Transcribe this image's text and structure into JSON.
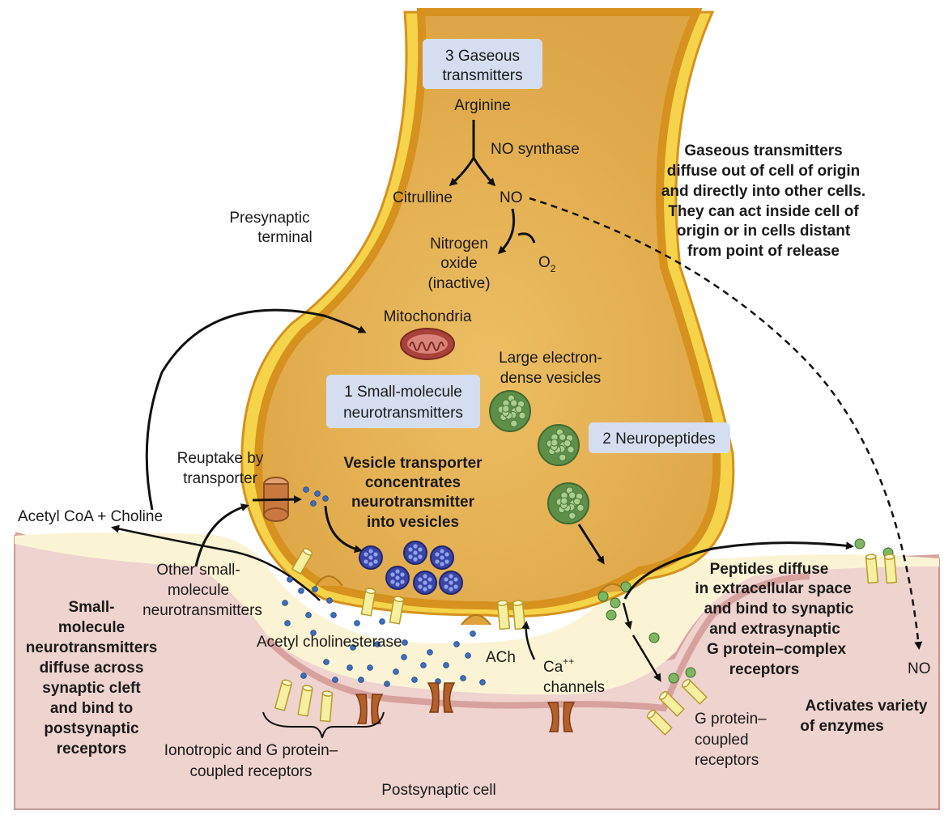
{
  "labels": {
    "gaseous_box": [
      "3 Gaseous",
      "transmitters"
    ],
    "arginine": "Arginine",
    "no_synthase": "NO synthase",
    "citrulline": "Citrulline",
    "no_top": "NO",
    "nitrogen_oxide": [
      "Nitrogen",
      "oxide",
      "(inactive)"
    ],
    "o2": "O",
    "o2_sub": "2",
    "presynaptic": [
      "Presynaptic",
      "terminal"
    ],
    "gaseous_note": [
      "Gaseous transmitters",
      "diffuse out of cell of origin",
      "and directly into other cells.",
      "They can act inside cell of",
      "origin or in cells distant",
      "from point of release"
    ],
    "mitochondria": "Mitochondria",
    "large_vesicles": [
      "Large electron-",
      "dense vesicles"
    ],
    "small_box": [
      "1 Small-molecule",
      "neurotransmitters"
    ],
    "neuropeptides_box": "2 Neuropeptides",
    "reuptake": [
      "Reuptake by",
      "transporter"
    ],
    "vesicle_transporter": [
      "Vesicle transporter",
      "concentrates",
      "neurotransmitter",
      "into vesicles"
    ],
    "acetyl_coa": "Acetyl CoA + Choline",
    "other_small": [
      "Other small-",
      "molecule",
      "neurotransmitters"
    ],
    "small_diffuse": [
      "Small-",
      "molecule",
      "neurotransmitters",
      "diffuse across",
      "synaptic cleft",
      "and bind to",
      "postsynaptic",
      "receptors"
    ],
    "acetyl_cholinesterase": "Acetyl cholinesterase",
    "ach": "ACh",
    "ca": "Ca",
    "ca_sup": "++",
    "channels": "channels",
    "peptides_diffuse": [
      "Peptides diffuse",
      "in extracellular space",
      "and bind to synaptic",
      "and extrasynaptic",
      "G protein–complex",
      "receptors"
    ],
    "no_bottom": "NO",
    "activates": [
      "Activates variety",
      "of enzymes"
    ],
    "g_protein": [
      "G protein–",
      "coupled",
      "receptors"
    ],
    "ionotropic": [
      "Ionotropic and G protein–",
      "coupled receptors"
    ],
    "postsynaptic": "Postsynaptic cell"
  },
  "colors": {
    "terminal_fill": "#E3AE4E",
    "terminal_membrane": "#D6911E",
    "terminal_outer": "#F5D34A",
    "postsynaptic_fill": "#EFD3CF",
    "postsynaptic_membrane": "#D7A29E",
    "cleft": "#FBF4D4",
    "label_box": "#D5DEF0",
    "small_vesicle": "#3B45A8",
    "peptide_vesicle": "#6E9E55",
    "transporter": "#C9783F"
  }
}
